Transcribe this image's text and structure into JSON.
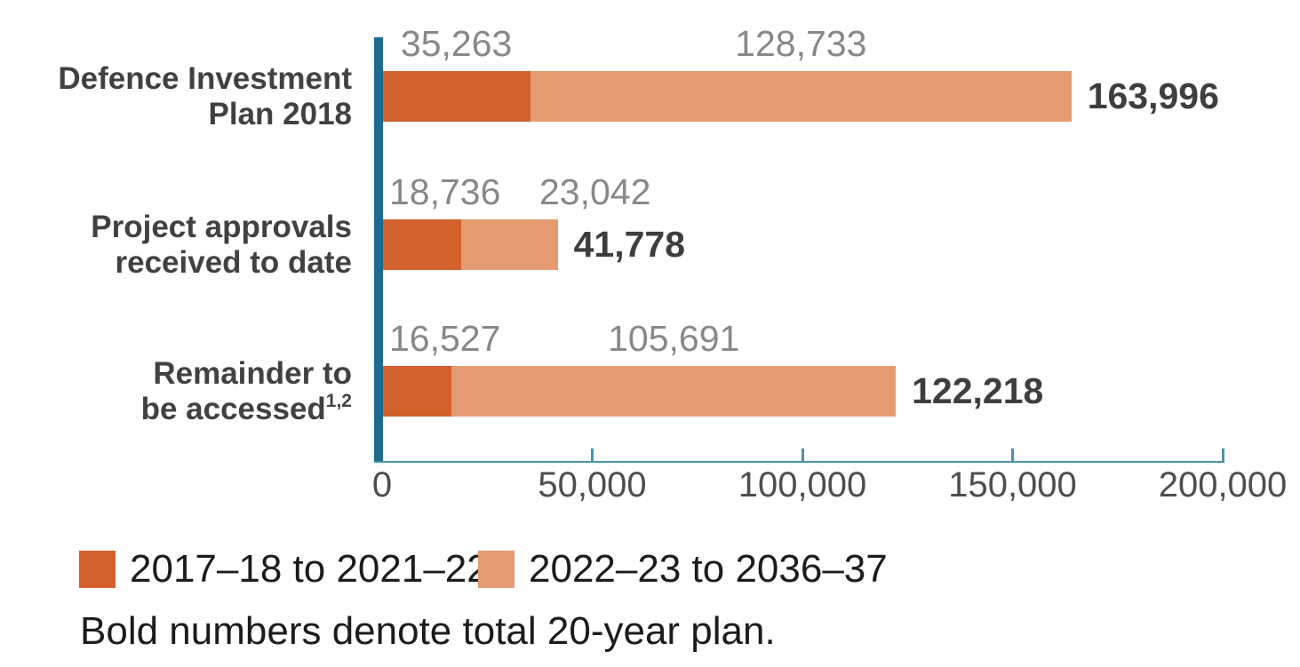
{
  "chart_data": {
    "type": "bar",
    "subtype": "horizontal-stacked",
    "x_axis": {
      "min": 0,
      "max": 200000,
      "tick_values": [
        0,
        50000,
        100000,
        150000,
        200000
      ],
      "tick_labels": [
        "0",
        "50,000",
        "100,000",
        "150,000",
        "200,000"
      ]
    },
    "series": [
      {
        "name": "2017–18 to 2021–22",
        "color": "#d2612c"
      },
      {
        "name": "2022–23 to 2036–37",
        "color": "#e59b72"
      }
    ],
    "rows": [
      {
        "category_line1": "Defence Investment",
        "category_line2": "Plan 2018",
        "category_footnote": "",
        "values": [
          35263,
          128733
        ],
        "value_labels": [
          "35,263",
          "128,733"
        ],
        "total": 163996,
        "total_label": "163,996"
      },
      {
        "category_line1": "Project approvals",
        "category_line2": "received to date",
        "category_footnote": "",
        "values": [
          18736,
          23042
        ],
        "value_labels": [
          "18,736",
          "23,042"
        ],
        "total": 41778,
        "total_label": "41,778"
      },
      {
        "category_line1": "Remainder to",
        "category_line2": "be accessed",
        "category_footnote": "1,2",
        "values": [
          16527,
          105691
        ],
        "value_labels": [
          "16,527",
          "105,691"
        ],
        "total": 122218,
        "total_label": "122,218"
      }
    ],
    "legend_position": "bottom-left",
    "note": "Bold numbers denote total 20-year plan."
  },
  "legend": {
    "items": [
      {
        "label": "2017–18 to 2021–22",
        "color": "#d2612c"
      },
      {
        "label": "2022–23 to 2036–37",
        "color": "#e59b72"
      }
    ],
    "note": "Bold numbers denote total 20-year plan."
  },
  "colors": {
    "segment1": "#d2612c",
    "segment2": "#e59b72",
    "axis_bar": "#1d6b8e",
    "axis_line": "#4a91ac",
    "value_label_gray": "#87888a",
    "dark_text": "#414042",
    "black_text": "#1c1c1c"
  }
}
